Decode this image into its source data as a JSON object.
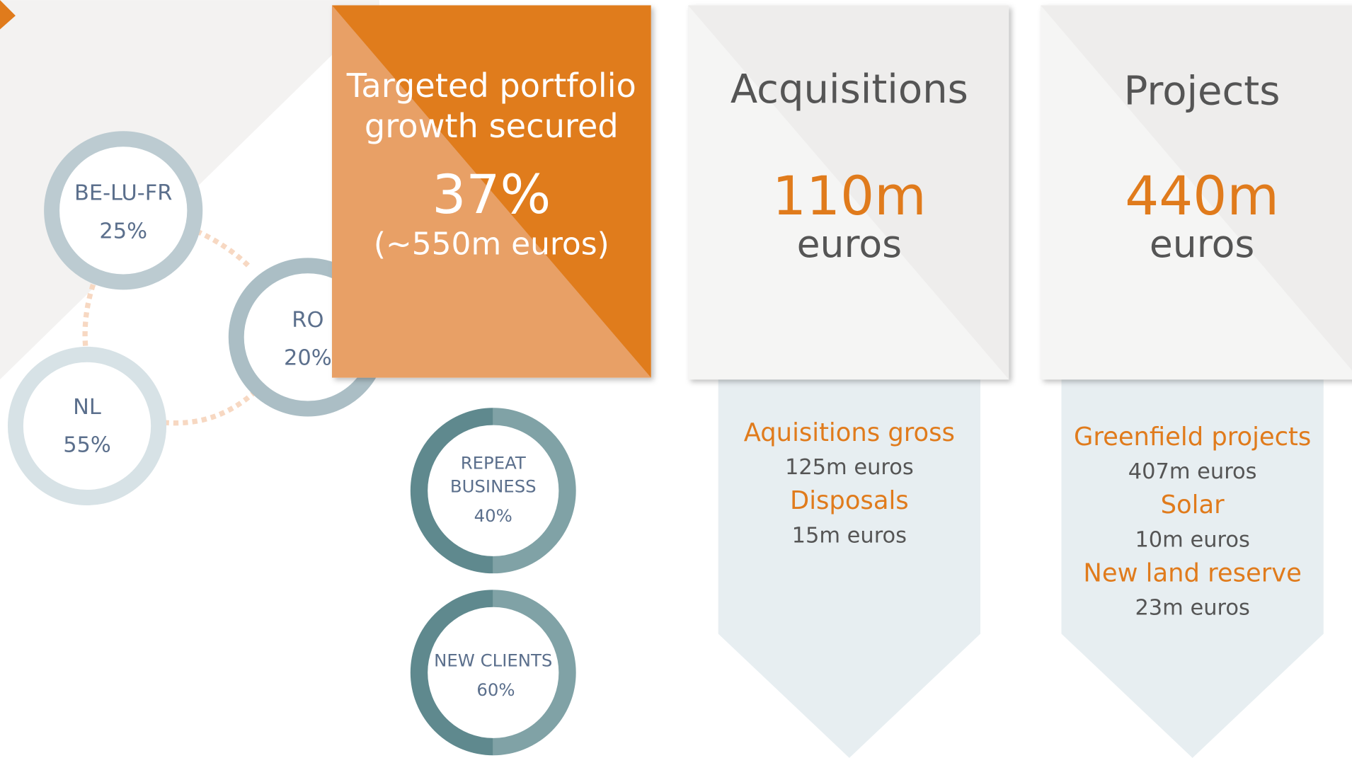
{
  "regions": [
    {
      "label": "BE-LU-FR",
      "value": "25%"
    },
    {
      "label": "RO",
      "value": "20%"
    },
    {
      "label": "NL",
      "value": "55%"
    }
  ],
  "portfolio": {
    "title": [
      "Targeted portfolio",
      "growth secured"
    ],
    "value": "37%",
    "detail": "(~550m euros)"
  },
  "clients": [
    {
      "label": [
        "REPEAT",
        "BUSINESS"
      ],
      "value": "40%"
    },
    {
      "label": [
        "NEW CLIENTS"
      ],
      "value": "60%"
    }
  ],
  "cards": [
    {
      "title": "Acquisitions",
      "amount": "110m",
      "unit": "euros",
      "items": [
        {
          "label": "Aquisitions gross",
          "value": "125m euros"
        },
        {
          "label": "Disposals",
          "value": "15m euros"
        }
      ]
    },
    {
      "title": "Projects",
      "amount": "440m",
      "unit": "euros",
      "items": [
        {
          "label": "Greenfield projects",
          "value": "407m euros"
        },
        {
          "label": "Solar",
          "value": "10m euros"
        },
        {
          "label": "New land reserve",
          "value": "23m euros"
        }
      ]
    }
  ]
}
